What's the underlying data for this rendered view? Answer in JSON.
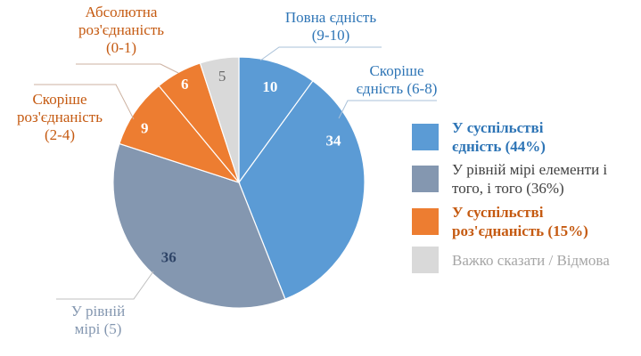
{
  "chart_data": {
    "type": "pie",
    "title": "",
    "units": "%",
    "total": 100,
    "start_angle": "12-oclock-clockwise",
    "slices": [
      {
        "callout_lines": [
          "Повна єдність",
          "(9-10)"
        ],
        "value": 10,
        "color": "#5B9BD5",
        "callout_color": "#2E75B6"
      },
      {
        "callout_lines": [
          "Скоріше",
          "єдність (6-8)"
        ],
        "value": 34,
        "color": "#5B9BD5",
        "callout_color": "#2E75B6"
      },
      {
        "callout_lines": [
          "У рівній",
          "мірі (5)"
        ],
        "value": 36,
        "color": "#8497B0",
        "callout_color": "#8497B0"
      },
      {
        "callout_lines": [
          "Скоріше",
          "роз'єднаність",
          "(2-4)"
        ],
        "value": 9,
        "color": "#ED7D31",
        "callout_color": "#C55A11"
      },
      {
        "callout_lines": [
          "Абсолютна",
          "роз'єднаність",
          "(0-1)"
        ],
        "value": 6,
        "color": "#ED7D31",
        "callout_color": "#C55A11"
      },
      {
        "callout_lines": [],
        "value": 5,
        "color": "#D9D9D9",
        "callout_color": "#A6A6A6"
      }
    ],
    "legend_position": "right",
    "legend": [
      {
        "lines": [
          "У суспільстві",
          "єдність (44%)"
        ],
        "swatch_color": "#5B9BD5",
        "text_color": "#2E75B6",
        "bold": true
      },
      {
        "lines": [
          "У рівній мірі елементи і",
          "того, і того (36%)"
        ],
        "swatch_color": "#8497B0",
        "text_color": "#3F3F3F",
        "bold": false
      },
      {
        "lines": [
          "У суспільстві",
          "роз'єднаність (15%)"
        ],
        "swatch_color": "#ED7D31",
        "text_color": "#C55A11",
        "bold": true
      },
      {
        "lines": [
          "Важко сказати / Відмова"
        ],
        "swatch_color": "#D9D9D9",
        "text_color": "#A6A6A6",
        "bold": false
      }
    ],
    "slice_number_label_colors": [
      "#ffffff",
      "#ffffff",
      "#2E4467",
      "#ffffff",
      "#ffffff",
      "#6A6A6A"
    ]
  }
}
